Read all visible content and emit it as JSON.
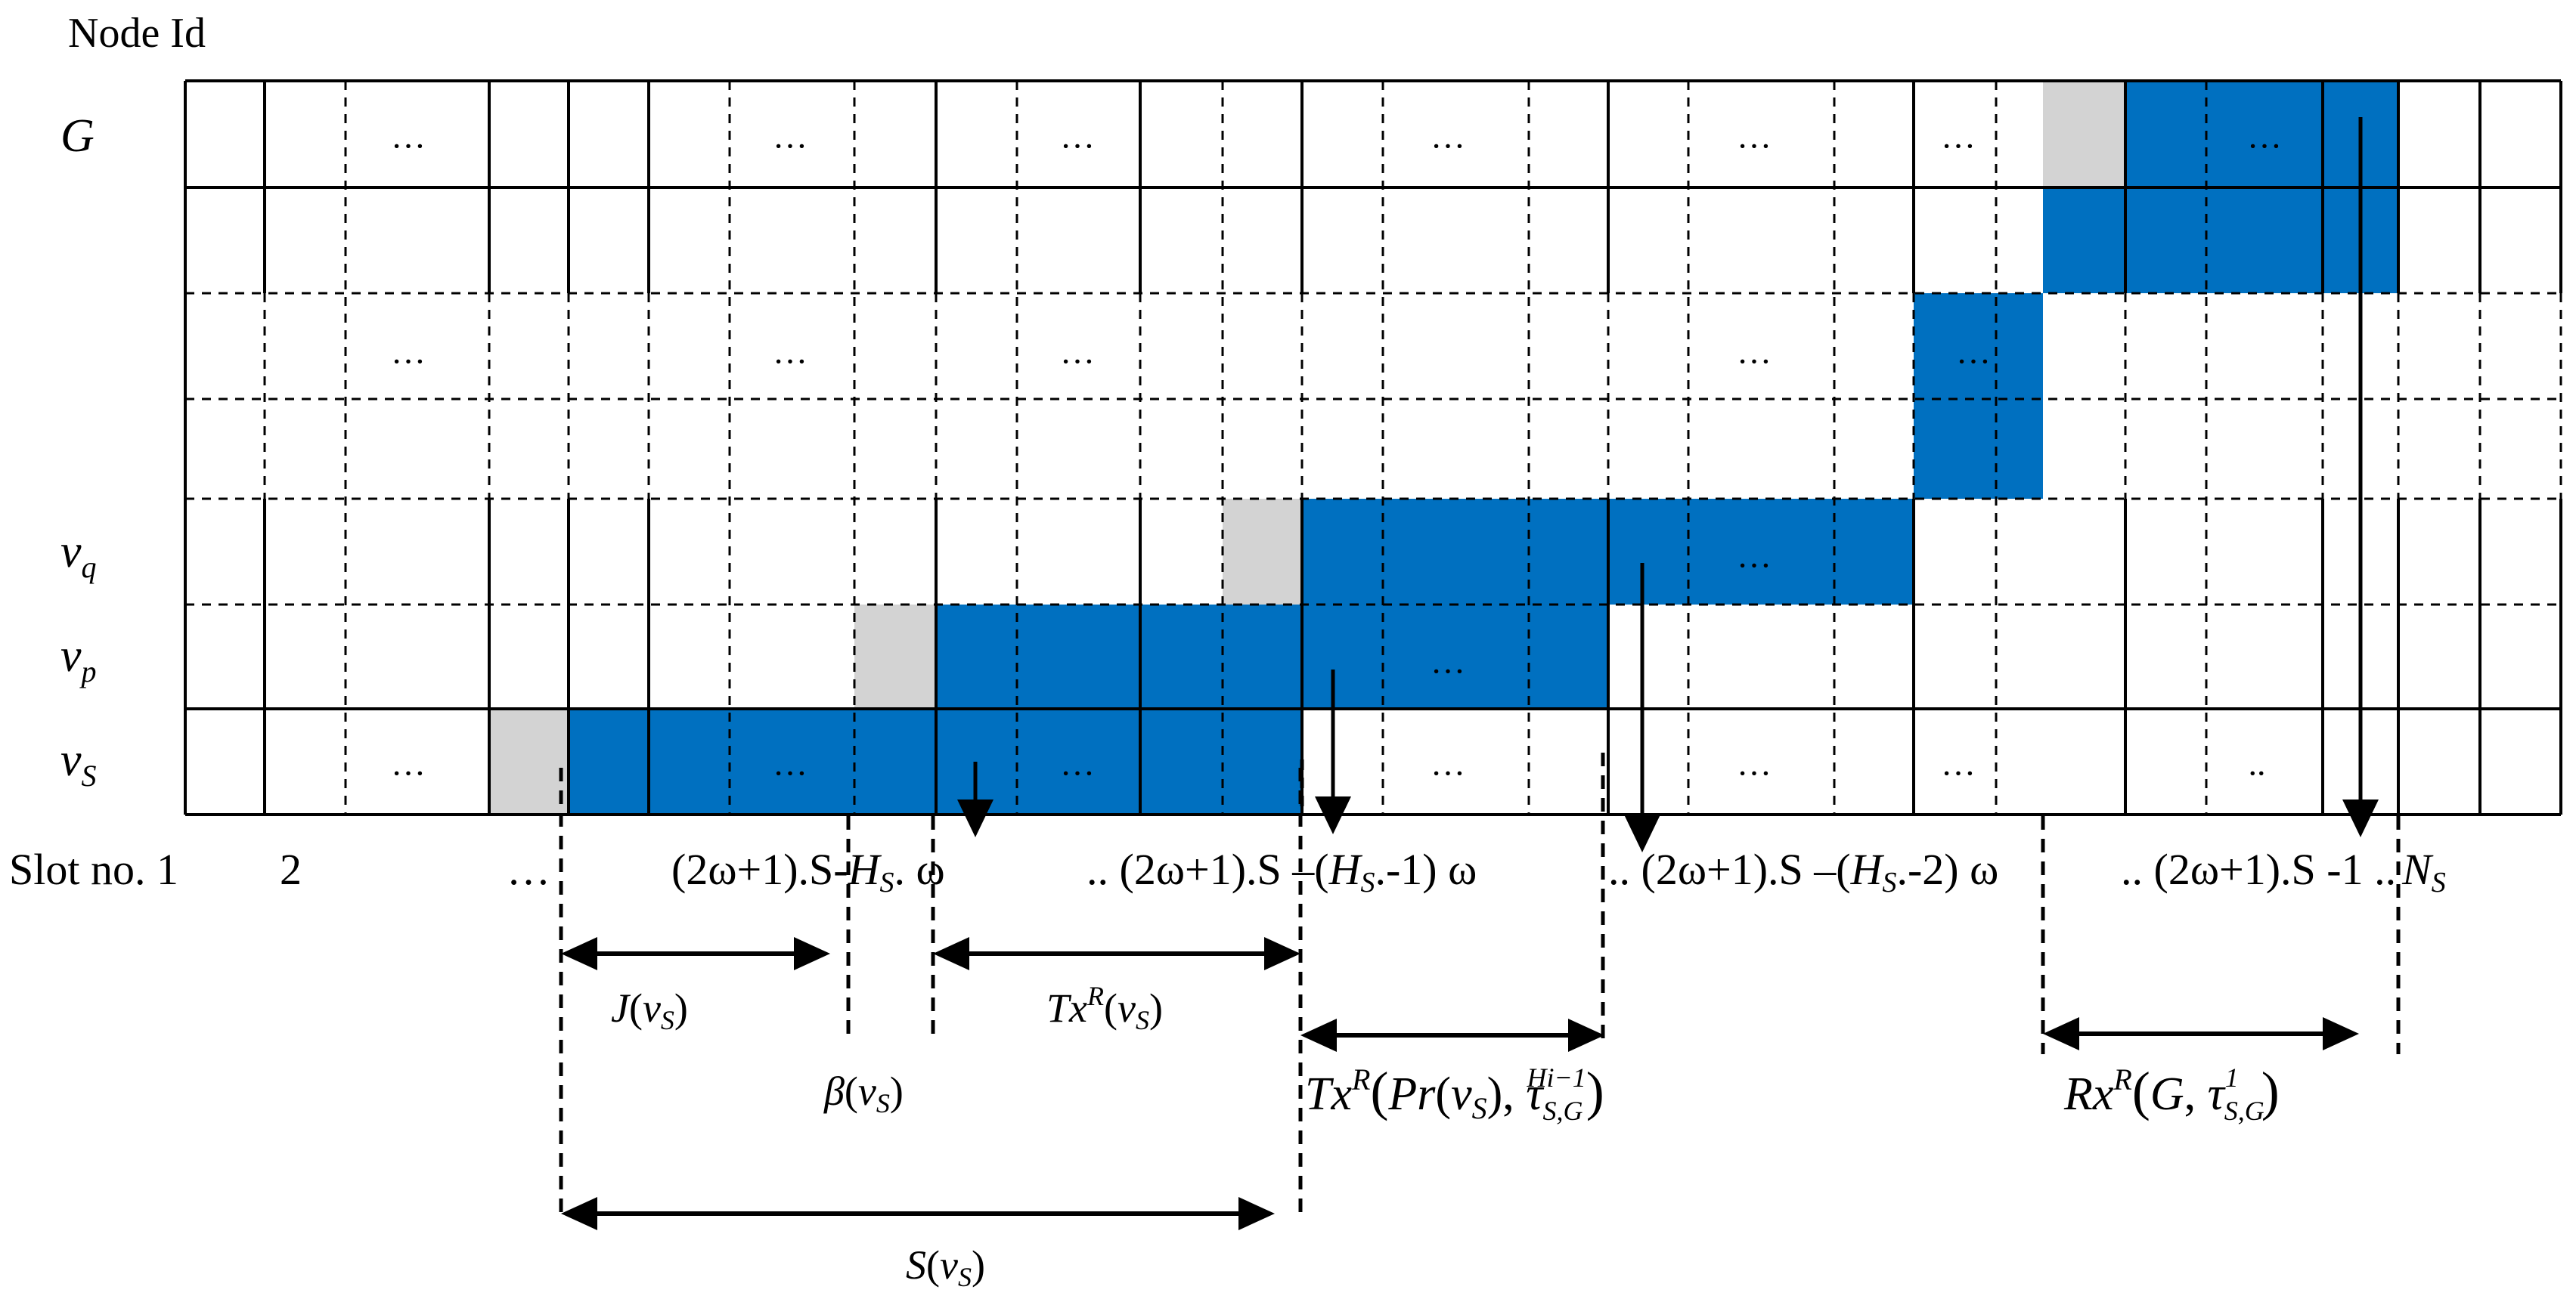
{
  "header": {
    "node_id_label": "Node Id"
  },
  "row_labels": [
    {
      "id": "G",
      "text": "G"
    },
    {
      "id": "vq",
      "text": "v",
      "sub": "q"
    },
    {
      "id": "vp",
      "text": "v",
      "sub": "p"
    },
    {
      "id": "vs",
      "text": "v",
      "sub": "S"
    }
  ],
  "ellipsis": "…",
  "ellipsis_short": "..",
  "slot_axis": {
    "label": "Slot no. 1",
    "two": "2",
    "dots": "…",
    "seg1": "(2ω+1).S-",
    "seg1_h": "H",
    "seg1_hsub": "S",
    "seg1_end": ". ω",
    "seg2": ".. (2ω+1).S –(",
    "seg2_h": "H",
    "seg2_hsub": "S",
    "seg2_end": ".-1) ω",
    "seg3": ".. (2ω+1).S –(",
    "seg3_h": "H",
    "seg3_hsub": "S",
    "seg3_end": ".-2) ω",
    "seg4": ".. (2ω+1).S -1 ..",
    "ns": "N",
    "ns_sub": "S"
  },
  "intervals": {
    "j": {
      "name": "J",
      "arg": "v",
      "arg_sub": "S"
    },
    "txr": {
      "name": "Tx",
      "sup": "R",
      "arg": "v",
      "arg_sub": "S"
    },
    "beta": {
      "name": "β",
      "arg": "v",
      "arg_sub": "S"
    },
    "s": {
      "name": "S",
      "arg": "v",
      "arg_sub": "S"
    },
    "txr_pr": {
      "name": "Tx",
      "sup": "R",
      "pr": "Pr",
      "arg": "v",
      "arg_sub": "S",
      "tau": "τ",
      "tau_sub": "S,G",
      "tau_sup": "Hi−1"
    },
    "rxr_g": {
      "name": "Rx",
      "sup": "R",
      "g": "G",
      "tau": "τ",
      "tau_sub": "S,G",
      "tau_sup": "1"
    }
  },
  "colors": {
    "active": "#0070C0",
    "waiting": "#D3D3D3",
    "line": "#000000"
  }
}
